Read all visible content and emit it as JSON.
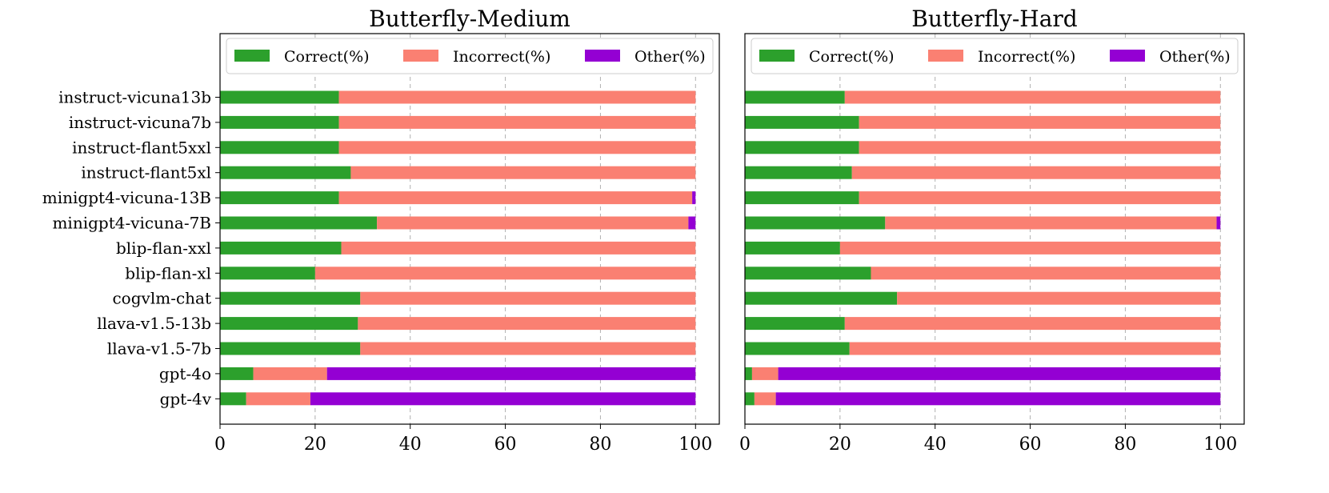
{
  "chart_data": [
    {
      "type": "bar",
      "orientation": "horizontal",
      "stacked": true,
      "title": "Butterfly-Medium",
      "categories": [
        "instruct-vicuna13b",
        "instruct-vicuna7b",
        "instruct-flant5xxl",
        "instruct-flant5xl",
        "minigpt4-vicuna-13B",
        "minigpt4-vicuna-7B",
        "blip-flan-xxl",
        "blip-flan-xl",
        "cogvlm-chat",
        "llava-v1.5-13b",
        "llava-v1.5-7b",
        "gpt-4o",
        "gpt-4v"
      ],
      "series": [
        {
          "name": "Correct(%)",
          "color": "#2ca02c",
          "values": [
            25,
            25,
            25,
            27.5,
            25,
            33,
            25.5,
            20,
            29.5,
            29,
            29.5,
            7,
            5.5
          ]
        },
        {
          "name": "Incorrect(%)",
          "color": "#fa8072",
          "values": [
            75,
            75,
            75,
            72.5,
            74.3,
            65.5,
            74.5,
            80,
            70.5,
            71,
            70.5,
            15.5,
            13.5
          ]
        },
        {
          "name": "Other(%)",
          "color": "#9400d3",
          "values": [
            0,
            0,
            0,
            0,
            0.7,
            1.5,
            0,
            0,
            0,
            0,
            0,
            77.5,
            81
          ]
        }
      ],
      "xlim": [
        0,
        105
      ],
      "xticks": [
        0,
        20,
        40,
        60,
        80,
        100
      ],
      "grid": "x-dashed",
      "legend": "top"
    },
    {
      "type": "bar",
      "orientation": "horizontal",
      "stacked": true,
      "title": "Butterfly-Hard",
      "categories": [
        "instruct-vicuna13b",
        "instruct-vicuna7b",
        "instruct-flant5xxl",
        "instruct-flant5xl",
        "minigpt4-vicuna-13B",
        "minigpt4-vicuna-7B",
        "blip-flan-xxl",
        "blip-flan-xl",
        "cogvlm-chat",
        "llava-v1.5-13b",
        "llava-v1.5-7b",
        "gpt-4o",
        "gpt-4v"
      ],
      "series": [
        {
          "name": "Correct(%)",
          "color": "#2ca02c",
          "values": [
            21,
            24,
            24,
            22.5,
            24,
            29.5,
            20,
            26.5,
            32,
            21,
            22,
            1.5,
            2
          ]
        },
        {
          "name": "Incorrect(%)",
          "color": "#fa8072",
          "values": [
            79,
            76,
            76,
            77.5,
            76,
            69.7,
            80,
            73.5,
            68,
            79,
            78,
            5.5,
            4.5
          ]
        },
        {
          "name": "Other(%)",
          "color": "#9400d3",
          "values": [
            0,
            0,
            0,
            0,
            0,
            0.8,
            0,
            0,
            0,
            0,
            0,
            93,
            93.5
          ]
        }
      ],
      "xlim": [
        0,
        105
      ],
      "xticks": [
        0,
        20,
        40,
        60,
        80,
        100
      ],
      "grid": "x-dashed",
      "legend": "top"
    }
  ]
}
